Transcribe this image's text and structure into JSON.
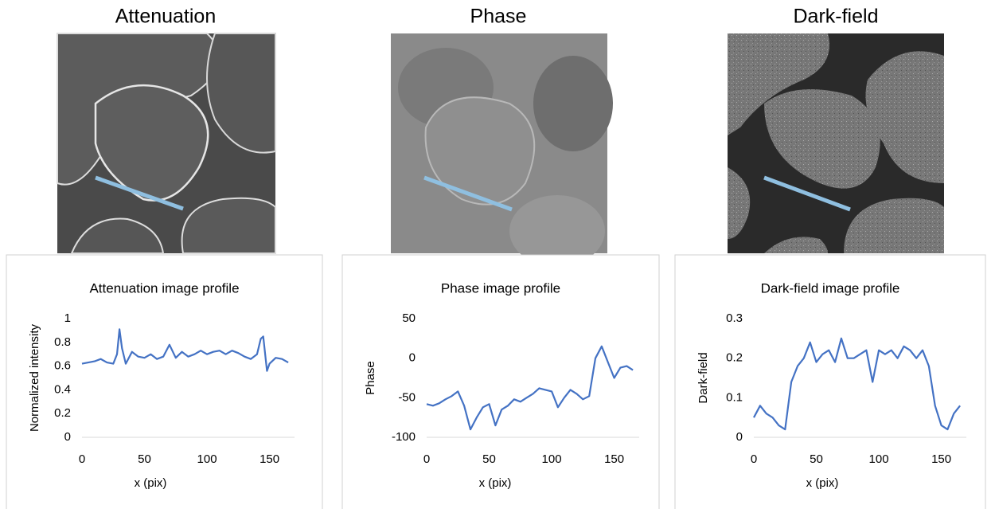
{
  "image_titles": [
    "Attenuation",
    "Phase",
    "Dark-field"
  ],
  "chart_data": [
    {
      "type": "line",
      "title": "Attenuation image profile",
      "x_label": "x (pix)",
      "y_label": "Normalized intensity",
      "title_color": "#000000",
      "y_label_color": "#000000",
      "x": [
        0,
        5,
        10,
        15,
        20,
        25,
        28,
        30,
        32,
        35,
        40,
        45,
        50,
        55,
        60,
        65,
        70,
        75,
        80,
        85,
        90,
        95,
        100,
        105,
        110,
        115,
        120,
        125,
        130,
        135,
        140,
        143,
        145,
        148,
        150,
        155,
        160,
        165
      ],
      "series": [
        {
          "name": "Attenuation",
          "color": "#4472c4",
          "values": [
            0.62,
            0.63,
            0.64,
            0.66,
            0.63,
            0.62,
            0.7,
            0.91,
            0.75,
            0.62,
            0.72,
            0.68,
            0.67,
            0.7,
            0.66,
            0.68,
            0.78,
            0.67,
            0.72,
            0.68,
            0.7,
            0.73,
            0.7,
            0.72,
            0.73,
            0.7,
            0.73,
            0.71,
            0.68,
            0.66,
            0.7,
            0.83,
            0.85,
            0.56,
            0.62,
            0.67,
            0.66,
            0.63
          ]
        }
      ],
      "xlim": [
        0,
        170
      ],
      "xticks": [
        0,
        50,
        100,
        150
      ],
      "ylim": [
        0,
        1
      ],
      "yticks": [
        0,
        0.2,
        0.4,
        0.6,
        0.8,
        1
      ],
      "grid": false
    },
    {
      "type": "line",
      "title": "Phase image profile",
      "x_label": "x (pix)",
      "y_label": "Phase",
      "title_color": "#666666",
      "y_label_color": "#666666",
      "x": [
        0,
        5,
        10,
        15,
        20,
        25,
        30,
        35,
        40,
        45,
        50,
        55,
        60,
        65,
        70,
        75,
        80,
        85,
        90,
        95,
        100,
        105,
        110,
        115,
        120,
        125,
        130,
        135,
        140,
        145,
        150,
        155,
        160,
        165
      ],
      "series": [
        {
          "name": "Phase",
          "color": "#4472c4",
          "values": [
            -58,
            -60,
            -57,
            -52,
            -48,
            -42,
            -60,
            -90,
            -75,
            -62,
            -58,
            -85,
            -65,
            -60,
            -52,
            -55,
            -50,
            -45,
            -38,
            -40,
            -42,
            -62,
            -50,
            -40,
            -45,
            -52,
            -48,
            0,
            15,
            -5,
            -25,
            -12,
            -10,
            -15
          ]
        }
      ],
      "xlim": [
        0,
        170
      ],
      "xticks": [
        0,
        50,
        100,
        150
      ],
      "ylim": [
        -100,
        50
      ],
      "yticks": [
        -100,
        -50,
        0,
        50
      ],
      "grid": false
    },
    {
      "type": "line",
      "title": "Dark-field image profile",
      "x_label": "x (pix)",
      "y_label": "Dark-field",
      "title_color": "#000000",
      "y_label_color": "#000000",
      "x": [
        0,
        5,
        10,
        15,
        20,
        25,
        30,
        35,
        40,
        45,
        50,
        55,
        60,
        65,
        70,
        75,
        80,
        85,
        90,
        95,
        100,
        105,
        110,
        115,
        120,
        125,
        130,
        135,
        140,
        145,
        150,
        155,
        160,
        165
      ],
      "series": [
        {
          "name": "Dark-field",
          "color": "#4472c4",
          "values": [
            0.05,
            0.08,
            0.06,
            0.05,
            0.03,
            0.02,
            0.14,
            0.18,
            0.2,
            0.24,
            0.19,
            0.21,
            0.22,
            0.19,
            0.25,
            0.2,
            0.2,
            0.21,
            0.22,
            0.14,
            0.22,
            0.21,
            0.22,
            0.2,
            0.23,
            0.22,
            0.2,
            0.22,
            0.18,
            0.08,
            0.03,
            0.02,
            0.06,
            0.08
          ]
        }
      ],
      "xlim": [
        0,
        170
      ],
      "xticks": [
        0,
        50,
        100,
        150
      ],
      "ylim": [
        0,
        0.3
      ],
      "yticks": [
        0,
        0.1,
        0.2,
        0.3
      ],
      "grid": false
    }
  ]
}
